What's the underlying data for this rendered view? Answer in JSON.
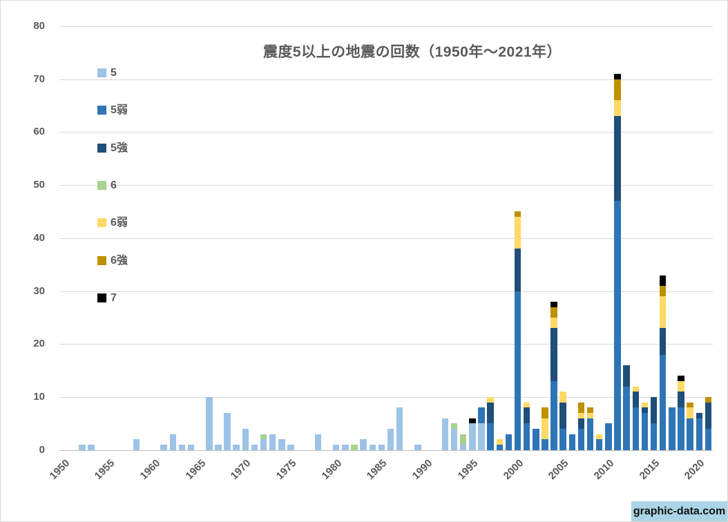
{
  "watermark": {
    "text": "graphic-data.com",
    "bg_color": "#abd5e6"
  },
  "colors": {
    "text": "#595959",
    "gridline": "#d9d9d9",
    "axis": "#bfbfbf"
  },
  "chart_data": {
    "type": "bar",
    "stacked": true,
    "title": "震度5以上の地震の回数（1950年〜2021年）",
    "xlabel": "",
    "ylabel": "",
    "ylim": [
      0,
      80
    ],
    "y_ticks": [
      0,
      10,
      20,
      30,
      40,
      50,
      60,
      70,
      80
    ],
    "grid": true,
    "legend_position": "left-vertical",
    "x_start": 1950,
    "x_end": 2021,
    "x_tick_labels": [
      "1950",
      "1955",
      "1960",
      "1965",
      "1970",
      "1975",
      "1980",
      "1985",
      "1990",
      "1995",
      "2000",
      "2005",
      "2010",
      "2015",
      "2020"
    ],
    "categories": [
      1950,
      1951,
      1952,
      1953,
      1954,
      1955,
      1956,
      1957,
      1958,
      1959,
      1960,
      1961,
      1962,
      1963,
      1964,
      1965,
      1966,
      1967,
      1968,
      1969,
      1970,
      1971,
      1972,
      1973,
      1974,
      1975,
      1976,
      1977,
      1978,
      1979,
      1980,
      1981,
      1982,
      1983,
      1984,
      1985,
      1986,
      1987,
      1988,
      1989,
      1990,
      1991,
      1992,
      1993,
      1994,
      1995,
      1996,
      1997,
      1998,
      1999,
      2000,
      2001,
      2002,
      2003,
      2004,
      2005,
      2006,
      2007,
      2008,
      2009,
      2010,
      2011,
      2012,
      2013,
      2014,
      2015,
      2016,
      2017,
      2018,
      2019,
      2020,
      2021
    ],
    "series": [
      {
        "name": "5",
        "color": "#9dc3e6",
        "values": [
          0,
          0,
          1,
          1,
          0,
          0,
          0,
          0,
          2,
          0,
          0,
          1,
          3,
          1,
          1,
          0,
          10,
          1,
          7,
          1,
          4,
          1,
          2,
          3,
          2,
          1,
          0,
          0,
          3,
          0,
          1,
          1,
          0,
          2,
          1,
          1,
          4,
          8,
          0,
          1,
          0,
          0,
          6,
          4,
          1,
          5,
          5,
          0,
          0,
          0,
          0,
          0,
          0,
          0,
          0,
          0,
          0,
          0,
          0,
          0,
          0,
          0,
          0,
          0,
          0,
          0,
          0,
          0,
          0,
          0,
          0,
          0
        ]
      },
      {
        "name": "5弱",
        "color": "#2e75b6",
        "values": [
          0,
          0,
          0,
          0,
          0,
          0,
          0,
          0,
          0,
          0,
          0,
          0,
          0,
          0,
          0,
          0,
          0,
          0,
          0,
          0,
          0,
          0,
          0,
          0,
          0,
          0,
          0,
          0,
          0,
          0,
          0,
          0,
          0,
          0,
          0,
          0,
          0,
          0,
          0,
          0,
          0,
          0,
          0,
          0,
          0,
          0,
          3,
          5,
          1,
          3,
          30,
          5,
          4,
          2,
          13,
          4,
          3,
          4,
          6,
          2,
          5,
          47,
          12,
          8,
          7,
          5,
          18,
          8,
          8,
          6,
          6,
          4
        ]
      },
      {
        "name": "5強",
        "color": "#1f4e79",
        "values": [
          0,
          0,
          0,
          0,
          0,
          0,
          0,
          0,
          0,
          0,
          0,
          0,
          0,
          0,
          0,
          0,
          0,
          0,
          0,
          0,
          0,
          0,
          0,
          0,
          0,
          0,
          0,
          0,
          0,
          0,
          0,
          0,
          0,
          0,
          0,
          0,
          0,
          0,
          0,
          0,
          0,
          0,
          0,
          0,
          0,
          0,
          0,
          4,
          0,
          0,
          8,
          3,
          0,
          0,
          10,
          5,
          0,
          2,
          0,
          0,
          0,
          16,
          4,
          3,
          1,
          5,
          5,
          0,
          3,
          0,
          1,
          5
        ]
      },
      {
        "name": "6",
        "color": "#a9d18e",
        "values": [
          0,
          0,
          0,
          0,
          0,
          0,
          0,
          0,
          0,
          0,
          0,
          0,
          0,
          0,
          0,
          0,
          0,
          0,
          0,
          0,
          0,
          0,
          1,
          0,
          0,
          0,
          0,
          0,
          0,
          0,
          0,
          0,
          1,
          0,
          0,
          0,
          0,
          0,
          0,
          0,
          0,
          0,
          0,
          1,
          2,
          0,
          0,
          0,
          0,
          0,
          0,
          0,
          0,
          0,
          0,
          0,
          0,
          0,
          0,
          0,
          0,
          0,
          0,
          0,
          0,
          0,
          0,
          0,
          0,
          0,
          0,
          0
        ]
      },
      {
        "name": "6弱",
        "color": "#ffd966",
        "values": [
          0,
          0,
          0,
          0,
          0,
          0,
          0,
          0,
          0,
          0,
          0,
          0,
          0,
          0,
          0,
          0,
          0,
          0,
          0,
          0,
          0,
          0,
          0,
          0,
          0,
          0,
          0,
          0,
          0,
          0,
          0,
          0,
          0,
          0,
          0,
          0,
          0,
          0,
          0,
          0,
          0,
          0,
          0,
          0,
          0,
          0,
          0,
          1,
          1,
          0,
          6,
          1,
          0,
          4,
          2,
          2,
          0,
          1,
          1,
          1,
          0,
          3,
          0,
          1,
          1,
          0,
          6,
          0,
          2,
          2,
          0,
          0
        ]
      },
      {
        "name": "6強",
        "color": "#bf9000",
        "values": [
          0,
          0,
          0,
          0,
          0,
          0,
          0,
          0,
          0,
          0,
          0,
          0,
          0,
          0,
          0,
          0,
          0,
          0,
          0,
          0,
          0,
          0,
          0,
          0,
          0,
          0,
          0,
          0,
          0,
          0,
          0,
          0,
          0,
          0,
          0,
          0,
          0,
          0,
          0,
          0,
          0,
          0,
          0,
          0,
          0,
          0,
          0,
          0,
          0,
          0,
          1,
          0,
          0,
          2,
          2,
          0,
          0,
          2,
          1,
          0,
          0,
          4,
          0,
          0,
          0,
          0,
          2,
          0,
          0,
          1,
          0,
          1
        ]
      },
      {
        "name": "7",
        "color": "#000000",
        "values": [
          0,
          0,
          0,
          0,
          0,
          0,
          0,
          0,
          0,
          0,
          0,
          0,
          0,
          0,
          0,
          0,
          0,
          0,
          0,
          0,
          0,
          0,
          0,
          0,
          0,
          0,
          0,
          0,
          0,
          0,
          0,
          0,
          0,
          0,
          0,
          0,
          0,
          0,
          0,
          0,
          0,
          0,
          0,
          0,
          0,
          1,
          0,
          0,
          0,
          0,
          0,
          0,
          0,
          0,
          1,
          0,
          0,
          0,
          0,
          0,
          0,
          1,
          0,
          0,
          0,
          0,
          2,
          0,
          1,
          0,
          0,
          0
        ]
      }
    ]
  }
}
